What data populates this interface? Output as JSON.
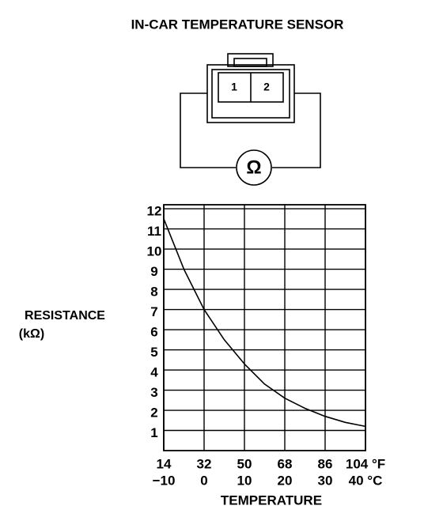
{
  "diagram": {
    "pins": [
      "1",
      "2"
    ],
    "meter": "Ω"
  },
  "chart_data": {
    "type": "line",
    "title": "IN-CAR TEMPERATURE SENSOR",
    "y_label": "RESISTANCE",
    "y_unit": "(kΩ)",
    "x_label": "TEMPERATURE",
    "x": [
      14,
      23,
      32,
      41,
      50,
      59,
      68,
      77,
      86,
      95,
      104
    ],
    "values": [
      11.5,
      9.0,
      7.0,
      5.5,
      4.3,
      3.3,
      2.6,
      2.1,
      1.7,
      1.4,
      1.2
    ],
    "color": "#000000",
    "xlim": [
      14,
      104
    ],
    "xticks": [
      14,
      32,
      50,
      68,
      86,
      {
        "value": 104,
        "label": "104 °F"
      }
    ],
    "x2lim": [
      -10,
      40
    ],
    "x2ticks": [
      {
        "value": -10,
        "label": "−10"
      },
      0,
      10,
      20,
      30,
      {
        "value": 40,
        "label": "40 °C"
      }
    ],
    "ylim": [
      0,
      12.2
    ],
    "yticks": [
      1,
      2,
      3,
      4,
      5,
      6,
      7,
      8,
      9,
      10,
      11,
      12
    ],
    "grid": true
  }
}
